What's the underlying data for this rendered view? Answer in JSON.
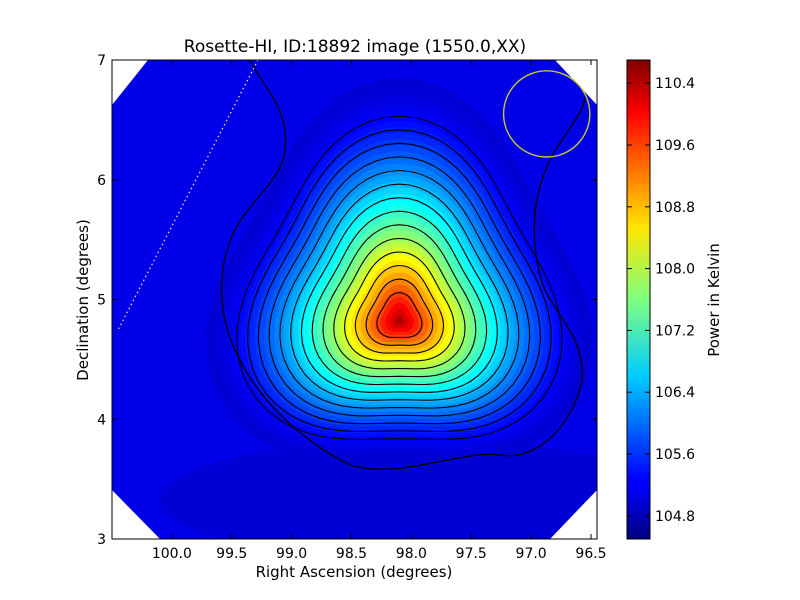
{
  "chart_data": {
    "type": "heatmap",
    "title": "Rosette-HI, ID:18892 image (1550.0,XX)",
    "xlabel": "Right Ascension (degrees)",
    "ylabel": "Declination (degrees)",
    "xlim": [
      100.5,
      96.45
    ],
    "ylim": [
      3,
      7
    ],
    "xticks": [
      100.0,
      99.5,
      99.0,
      98.5,
      98.0,
      97.5,
      97.0,
      96.5
    ],
    "xtick_labels": [
      "100.0",
      "99.5",
      "99.0",
      "98.5",
      "98.0",
      "97.5",
      "97.0",
      "96.5"
    ],
    "yticks": [
      3,
      4,
      5,
      6,
      7
    ],
    "ytick_labels": [
      "3",
      "4",
      "5",
      "6",
      "7"
    ],
    "colorbar": {
      "label": "Power in Kelvin",
      "range": [
        104.5,
        110.7
      ],
      "ticks": [
        104.8,
        105.6,
        106.4,
        107.2,
        108.0,
        108.8,
        109.6,
        110.4
      ],
      "tick_labels": [
        "104.8",
        "105.6",
        "106.4",
        "107.2",
        "108.0",
        "108.8",
        "109.6",
        "110.4"
      ],
      "colormap": "jet"
    },
    "peak": {
      "ra": 98.1,
      "dec": 4.82,
      "value": 110.6
    },
    "background_value": 105.0,
    "beam_circle": {
      "ra": 96.87,
      "dec": 6.55,
      "radius_deg": 0.36,
      "color": "#c8c832"
    },
    "grid": false
  }
}
